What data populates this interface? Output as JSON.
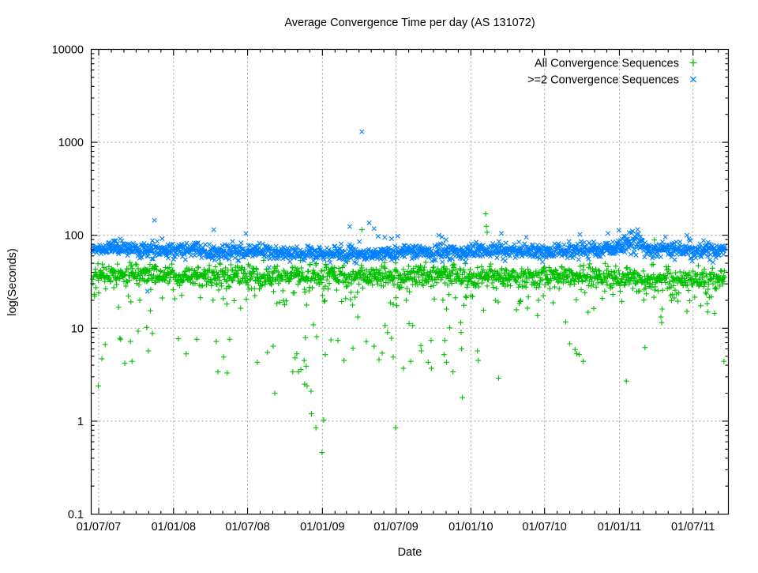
{
  "title": "Average Convergence Time per day (AS 131072)",
  "axes": {
    "xlabel": "Date",
    "ylabel": "log(Seconds)",
    "x_tick_labels": [
      "01/07/07",
      "01/01/08",
      "01/07/08",
      "01/01/09",
      "01/07/09",
      "01/01/10",
      "01/07/10",
      "01/01/11",
      "01/07/11"
    ],
    "x_tick_dates": [
      "2007-07-01",
      "2008-01-01",
      "2008-07-01",
      "2009-01-01",
      "2009-07-01",
      "2010-01-01",
      "2010-07-01",
      "2011-01-01",
      "2011-07-01"
    ],
    "y_tick_labels": [
      "10000",
      "1000",
      "100",
      "10",
      "1",
      "0.1"
    ],
    "y_tick_values": [
      10000,
      1000,
      100,
      10,
      1,
      0.1
    ],
    "y_scale": "log",
    "x_minor_ticks": "monthly",
    "grid_color": "#9e9e9e"
  },
  "legend": [
    {
      "label": "All Convergence Sequences",
      "marker": "plus",
      "color": "#00C000"
    },
    {
      "label": ">=2 Convergence Sequences",
      "marker": "cross",
      "color": "#0080FF"
    }
  ],
  "chart_data": {
    "type": "scatter",
    "title": "Average Convergence Time per day (AS 131072)",
    "xlabel": "Date",
    "ylabel": "log(Seconds)",
    "x_range": [
      "2007-06-16",
      "2011-09-17"
    ],
    "ylim": [
      0.1,
      10000
    ],
    "y_scale": "log",
    "grid": true,
    "legend_position": "top-right-inside",
    "seed": 42,
    "series": [
      {
        "name": "All Convergence Sequences",
        "marker": "plus",
        "color": "#00C000",
        "band_summary": "daily averages clustered 25-55 s, median ~35-38 s across whole period",
        "band": [
          {
            "from": "2007-06-16",
            "to": "2007-12-31",
            "center": 38,
            "sigma_dex": 0.055
          },
          {
            "from": "2008-01-01",
            "to": "2008-12-31",
            "center": 36,
            "sigma_dex": 0.06
          },
          {
            "from": "2009-01-01",
            "to": "2009-12-31",
            "center": 37,
            "sigma_dex": 0.06
          },
          {
            "from": "2010-01-01",
            "to": "2010-12-31",
            "center": 36,
            "sigma_dex": 0.055
          },
          {
            "from": "2011-01-01",
            "to": "2011-09-17",
            "center": 34,
            "sigma_dex": 0.055
          }
        ],
        "tail_down_prob": 0.12,
        "tail_down_dex": [
          0.05,
          0.32
        ],
        "tail_up_prob": 0.0,
        "tail_up_dex": [
          0,
          0
        ],
        "outliers": [
          [
            "2007-06-30",
            2.4
          ],
          [
            "2007-07-09",
            4.7
          ],
          [
            "2007-07-17",
            6.7
          ],
          [
            "2007-08-22",
            7.8
          ],
          [
            "2007-08-24",
            7.6
          ],
          [
            "2007-09-03",
            4.2
          ],
          [
            "2007-09-17",
            7.2
          ],
          [
            "2007-09-21",
            4.4
          ],
          [
            "2007-10-06",
            9.3
          ],
          [
            "2007-10-27",
            10.2
          ],
          [
            "2007-10-31",
            5.7
          ],
          [
            "2007-11-10",
            8.8
          ],
          [
            "2008-01-13",
            7.7
          ],
          [
            "2008-02-01",
            5.3
          ],
          [
            "2008-02-27",
            7.6
          ],
          [
            "2008-04-15",
            7.2
          ],
          [
            "2008-04-19",
            3.4
          ],
          [
            "2008-05-03",
            4.9
          ],
          [
            "2008-05-12",
            3.3
          ],
          [
            "2008-05-18",
            7.6
          ],
          [
            "2008-07-25",
            4.3
          ],
          [
            "2008-08-19",
            5.5
          ],
          [
            "2008-09-02",
            6.4
          ],
          [
            "2008-09-06",
            2.0
          ],
          [
            "2008-10-20",
            3.4
          ],
          [
            "2008-10-26",
            4.8
          ],
          [
            "2008-10-30",
            5.3
          ],
          [
            "2008-11-03",
            3.4
          ],
          [
            "2008-11-09",
            3.6
          ],
          [
            "2008-11-17",
            4.5
          ],
          [
            "2008-11-18",
            2.5
          ],
          [
            "2008-11-20",
            7.9
          ],
          [
            "2008-11-22",
            3.9
          ],
          [
            "2008-11-24",
            2.4
          ],
          [
            "2008-12-04",
            2.1
          ],
          [
            "2008-12-05",
            1.2
          ],
          [
            "2008-12-10",
            10.9
          ],
          [
            "2008-12-16",
            0.85
          ],
          [
            "2008-12-18",
            8.1
          ],
          [
            "2008-12-31",
            0.46
          ],
          [
            "2009-01-04",
            1.03
          ],
          [
            "2009-01-08",
            5.2
          ],
          [
            "2009-01-22",
            7.5
          ],
          [
            "2009-02-08",
            7.4
          ],
          [
            "2009-02-23",
            4.5
          ],
          [
            "2009-03-17",
            6.1
          ],
          [
            "2009-03-29",
            13.2
          ],
          [
            "2009-04-19",
            7.2
          ],
          [
            "2009-05-08",
            6.4
          ],
          [
            "2009-05-20",
            4.6
          ],
          [
            "2009-05-28",
            5.4
          ],
          [
            "2009-06-04",
            10.7
          ],
          [
            "2009-06-10",
            9.0
          ],
          [
            "2009-06-20",
            7.8
          ],
          [
            "2009-06-24",
            4.9
          ],
          [
            "2009-06-30",
            0.85
          ],
          [
            "2009-07-19",
            3.7
          ],
          [
            "2009-08-02",
            11.2
          ],
          [
            "2009-08-06",
            4.4
          ],
          [
            "2009-08-11",
            10.7
          ],
          [
            "2009-08-31",
            6.5
          ],
          [
            "2009-09-01",
            5.7
          ],
          [
            "2009-09-18",
            4.3
          ],
          [
            "2009-09-25",
            7.4
          ],
          [
            "2009-09-26",
            3.7
          ],
          [
            "2009-10-27",
            5.2
          ],
          [
            "2009-10-29",
            7.4
          ],
          [
            "2009-11-02",
            4.3
          ],
          [
            "2009-11-10",
            10.1
          ],
          [
            "2009-11-18",
            3.4
          ],
          [
            "2009-12-07",
            11.5
          ],
          [
            "2009-12-08",
            9.0
          ],
          [
            "2009-12-09",
            6.0
          ],
          [
            "2009-12-11",
            1.8
          ],
          [
            "2010-01-17",
            5.7
          ],
          [
            "2010-01-19",
            4.5
          ],
          [
            "2010-03-10",
            2.9
          ],
          [
            "2010-08-22",
            11.7
          ],
          [
            "2010-09-01",
            6.8
          ],
          [
            "2010-09-14",
            5.9
          ],
          [
            "2010-09-18",
            5.3
          ],
          [
            "2010-09-24",
            5.2
          ],
          [
            "2010-10-04",
            4.4
          ],
          [
            "2011-01-18",
            2.7
          ],
          [
            "2011-03-05",
            6.2
          ],
          [
            "2011-04-15",
            11.5
          ],
          [
            "2011-09-15",
            4.4
          ],
          [
            "2009-04-08",
            115
          ],
          [
            "2010-02-06",
            170
          ],
          [
            "2010-02-08",
            125
          ],
          [
            "2010-02-10",
            108
          ],
          [
            "2011-03-28",
            89
          ]
        ]
      },
      {
        "name": ">=2 Convergence Sequences",
        "marker": "cross",
        "color": "#0080FF",
        "band_summary": "daily averages clustered 55-90 s, median ~63-72 s; elevated burst ~80-110 s around Jan-Feb 2011",
        "band": [
          {
            "from": "2007-06-16",
            "to": "2007-09-30",
            "center": 73,
            "sigma_dex": 0.038
          },
          {
            "from": "2007-10-01",
            "to": "2008-02-29",
            "center": 70,
            "sigma_dex": 0.042
          },
          {
            "from": "2008-03-01",
            "to": "2008-08-31",
            "center": 66,
            "sigma_dex": 0.04
          },
          {
            "from": "2008-09-01",
            "to": "2009-06-30",
            "center": 63,
            "sigma_dex": 0.042
          },
          {
            "from": "2009-07-01",
            "to": "2009-12-31",
            "center": 66,
            "sigma_dex": 0.042
          },
          {
            "from": "2010-01-01",
            "to": "2010-08-31",
            "center": 68,
            "sigma_dex": 0.04
          },
          {
            "from": "2010-09-01",
            "to": "2010-12-25",
            "center": 70,
            "sigma_dex": 0.04
          },
          {
            "from": "2010-12-26",
            "to": "2011-02-28",
            "center": 80,
            "sigma_dex": 0.065
          },
          {
            "from": "2011-03-01",
            "to": "2011-09-17",
            "center": 70,
            "sigma_dex": 0.042
          }
        ],
        "tail_down_prob": 0.005,
        "tail_down_dex": [
          0.04,
          0.12
        ],
        "tail_up_prob": 0.006,
        "tail_up_dex": [
          0.12,
          0.2
        ],
        "outliers": [
          [
            "2007-10-29",
            25
          ],
          [
            "2007-11-15",
            145
          ],
          [
            "2008-04-09",
            115
          ],
          [
            "2009-03-09",
            124
          ],
          [
            "2009-04-08",
            1300
          ],
          [
            "2009-04-26",
            136
          ],
          [
            "2009-05-08",
            118
          ],
          [
            "2009-06-03",
            95
          ],
          [
            "2009-06-20",
            92
          ],
          [
            "2009-07-05",
            98
          ],
          [
            "2009-10-14",
            100
          ],
          [
            "2009-10-22",
            96
          ],
          [
            "2010-12-04",
            105
          ],
          [
            "2011-01-25",
            107
          ],
          [
            "2011-04-24",
            96
          ],
          [
            "2011-06-16",
            100
          ],
          [
            "2011-06-23",
            88
          ]
        ]
      }
    ]
  }
}
